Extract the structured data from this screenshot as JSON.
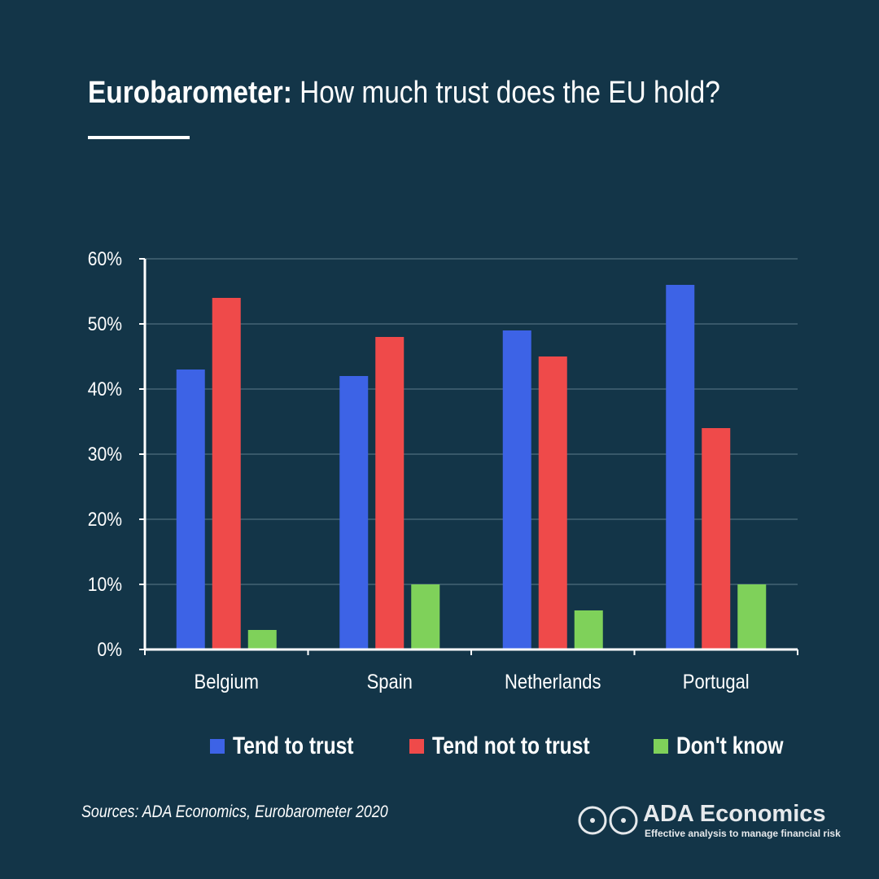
{
  "header": {
    "title_bold": "Eurobarometer:",
    "title_rest": " How much trust does the EU hold?"
  },
  "chart_data": {
    "type": "bar",
    "categories": [
      "Belgium",
      "Spain",
      "Netherlands",
      "Portugal"
    ],
    "series": [
      {
        "name": "Tend to trust",
        "color": "#3d63e6",
        "values": [
          43,
          42,
          49,
          56
        ]
      },
      {
        "name": "Tend not to trust",
        "color": "#ef4a4a",
        "values": [
          54,
          48,
          45,
          34
        ]
      },
      {
        "name": "Don't know",
        "color": "#7fd15a",
        "values": [
          3,
          10,
          6,
          10
        ]
      }
    ],
    "yticks": [
      "0%",
      "10%",
      "20%",
      "30%",
      "40%",
      "50%",
      "60%"
    ],
    "ylim": [
      0,
      60
    ],
    "grid": true,
    "legend_position": "bottom"
  },
  "legend": {
    "items": [
      {
        "label": "Tend to trust",
        "color": "#3d63e6"
      },
      {
        "label": "Tend not to trust",
        "color": "#ef4a4a"
      },
      {
        "label": "Don't know",
        "color": "#7fd15a"
      }
    ]
  },
  "footer": {
    "source": "Sources: ADA Economics, Eurobarometer 2020",
    "brand_name": "ADA Economics",
    "brand_tagline": "Effective analysis to manage financial risk"
  },
  "colors": {
    "background": "#133548",
    "gridline": "#5d7a8a",
    "axis": "#ffffff"
  }
}
